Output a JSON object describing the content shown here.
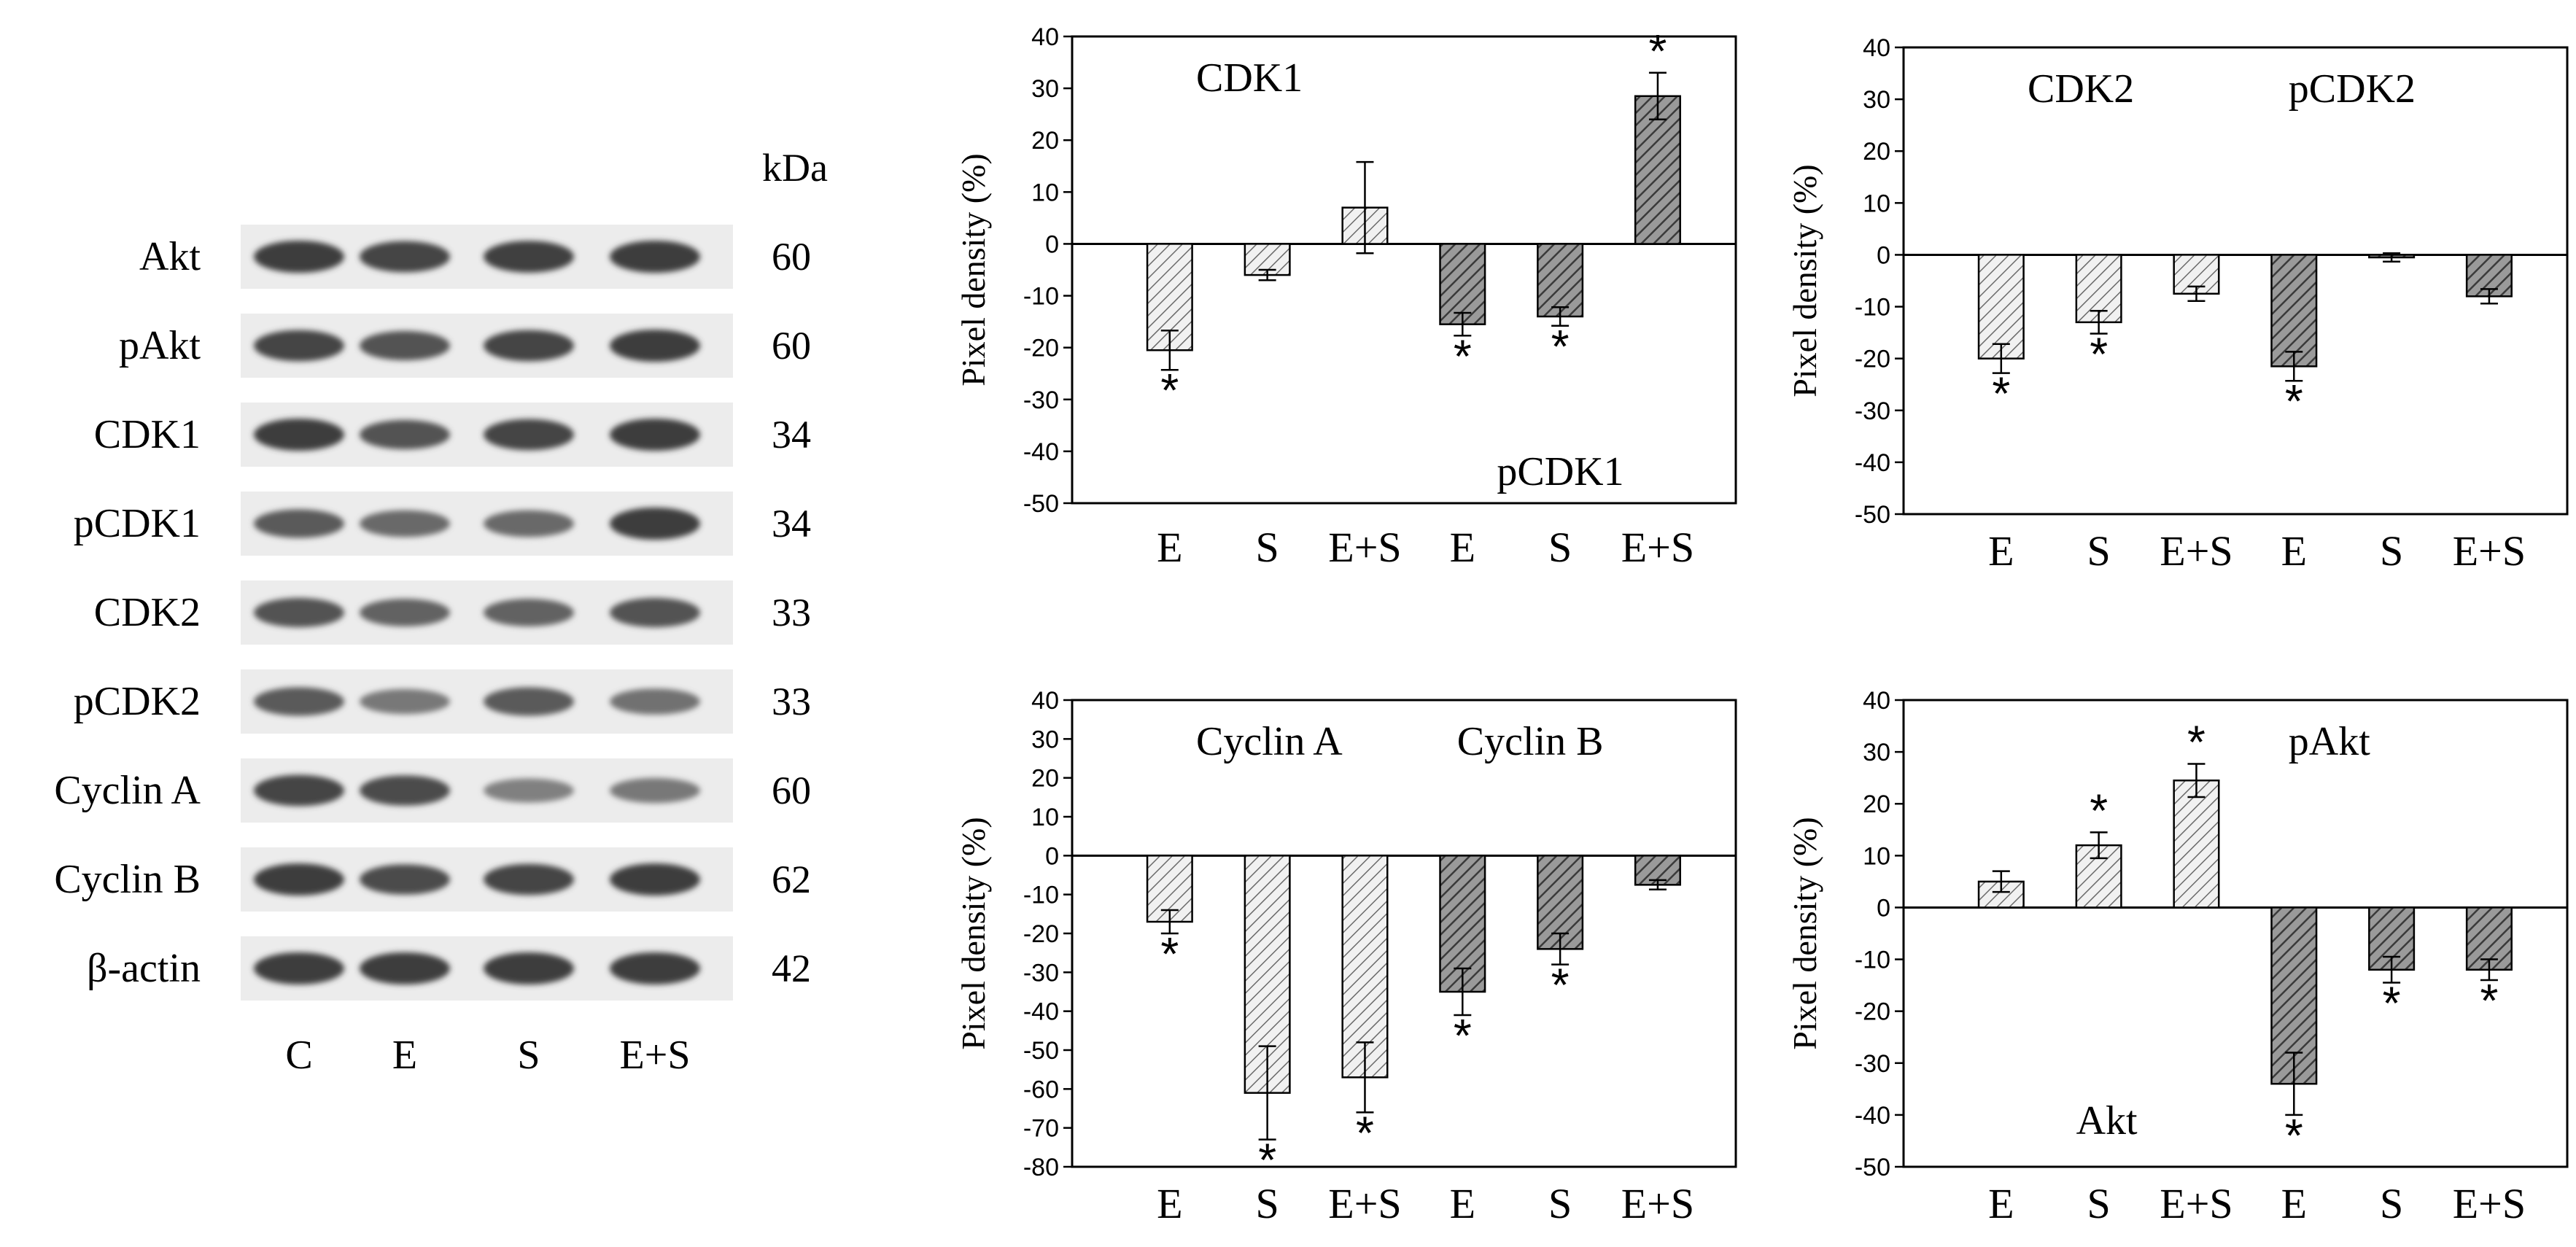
{
  "blot": {
    "kda_header": "kDa",
    "lanes": [
      "C",
      "E",
      "S",
      "E+S"
    ],
    "rows": [
      {
        "label": "Akt",
        "kda": "60",
        "intensity": [
          1.0,
          0.95,
          0.98,
          1.0
        ]
      },
      {
        "label": "pAkt",
        "kda": "60",
        "intensity": [
          0.95,
          0.85,
          0.95,
          1.0
        ]
      },
      {
        "label": "CDK1",
        "kda": "34",
        "intensity": [
          1.0,
          0.85,
          0.95,
          1.0
        ]
      },
      {
        "label": "pCDK1",
        "kda": "34",
        "intensity": [
          0.8,
          0.7,
          0.7,
          1.0
        ]
      },
      {
        "label": "CDK2",
        "kda": "33",
        "intensity": [
          0.85,
          0.75,
          0.75,
          0.85
        ]
      },
      {
        "label": "pCDK2",
        "kda": "33",
        "intensity": [
          0.8,
          0.6,
          0.8,
          0.65
        ]
      },
      {
        "label": "Cyclin A",
        "kda": "60",
        "intensity": [
          0.95,
          0.9,
          0.55,
          0.6
        ]
      },
      {
        "label": "Cyclin B",
        "kda": "62",
        "intensity": [
          1.0,
          0.9,
          0.95,
          1.0
        ]
      },
      {
        "label": "β-actin",
        "kda": "42",
        "intensity": [
          1.0,
          1.0,
          1.0,
          1.0
        ]
      }
    ]
  },
  "chart_data": [
    {
      "type": "bar",
      "ylabel": "Pixel density (%)",
      "ylim": [
        -50,
        40
      ],
      "yticks": [
        40,
        30,
        20,
        10,
        0,
        -10,
        -20,
        -30,
        -40,
        -50
      ],
      "annotations": [
        {
          "text": "CDK1",
          "anchor": "top-left"
        },
        {
          "text": "pCDK1",
          "anchor": "bottom-right"
        }
      ],
      "groups": [
        {
          "name": "CDK1",
          "categories": [
            "E",
            "S",
            "E+S"
          ],
          "values": [
            -20.5,
            -6,
            7
          ],
          "errors": [
            3.8,
            1,
            8.8
          ],
          "significant": [
            true,
            false,
            false
          ],
          "hatch": "light"
        },
        {
          "name": "pCDK1",
          "categories": [
            "E",
            "S",
            "E+S"
          ],
          "values": [
            -15.5,
            -14,
            28.5
          ],
          "errors": [
            2.2,
            1.8,
            4.5
          ],
          "significant": [
            true,
            true,
            true
          ],
          "hatch": "dark"
        }
      ]
    },
    {
      "type": "bar",
      "ylabel": "Pixel density (%)",
      "ylim": [
        -50,
        40
      ],
      "yticks": [
        40,
        30,
        20,
        10,
        0,
        -10,
        -20,
        -30,
        -40,
        -50
      ],
      "annotations": [
        {
          "text": "CDK2",
          "anchor": "top-left"
        },
        {
          "text": "pCDK2",
          "anchor": "top-right"
        }
      ],
      "groups": [
        {
          "name": "CDK2",
          "categories": [
            "E",
            "S",
            "E+S"
          ],
          "values": [
            -20,
            -13,
            -7.5
          ],
          "errors": [
            2.8,
            2.2,
            1.4
          ],
          "significant": [
            true,
            true,
            false
          ],
          "hatch": "light"
        },
        {
          "name": "pCDK2",
          "categories": [
            "E",
            "S",
            "E+S"
          ],
          "values": [
            -21.5,
            -0.5,
            -8
          ],
          "errors": [
            2.8,
            0.8,
            1.4
          ],
          "significant": [
            true,
            false,
            false
          ],
          "hatch": "dark"
        }
      ]
    },
    {
      "type": "bar",
      "ylabel": "Pixel density (%)",
      "ylim": [
        -80,
        40
      ],
      "yticks": [
        40,
        30,
        20,
        10,
        0,
        -10,
        -20,
        -30,
        -40,
        -50,
        -60,
        -70,
        -80
      ],
      "annotations": [
        {
          "text": "Cyclin A",
          "anchor": "top-left"
        },
        {
          "text": "Cyclin B",
          "anchor": "top-right"
        }
      ],
      "groups": [
        {
          "name": "Cyclin A",
          "categories": [
            "E",
            "S",
            "E+S"
          ],
          "values": [
            -17,
            -61,
            -57
          ],
          "errors": [
            3,
            12,
            9
          ],
          "significant": [
            true,
            true,
            true
          ],
          "hatch": "light"
        },
        {
          "name": "Cyclin B",
          "categories": [
            "E",
            "S",
            "E+S"
          ],
          "values": [
            -35,
            -24,
            -7.5
          ],
          "errors": [
            6,
            4,
            1.2
          ],
          "significant": [
            true,
            true,
            false
          ],
          "hatch": "dark"
        }
      ]
    },
    {
      "type": "bar",
      "ylabel": "Pixel density (%)",
      "ylim": [
        -50,
        40
      ],
      "yticks": [
        40,
        30,
        20,
        10,
        0,
        -10,
        -20,
        -30,
        -40,
        -50
      ],
      "annotations": [
        {
          "text": "pAkt",
          "anchor": "top-right"
        },
        {
          "text": "Akt",
          "anchor": "bottom-left"
        }
      ],
      "groups": [
        {
          "name": "pAkt",
          "categories": [
            "E",
            "S",
            "E+S"
          ],
          "values": [
            5,
            12,
            24.5
          ],
          "errors": [
            2,
            2.5,
            3.2
          ],
          "significant": [
            false,
            true,
            true
          ],
          "hatch": "light"
        },
        {
          "name": "Akt",
          "categories": [
            "E",
            "S",
            "E+S"
          ],
          "values": [
            -34,
            -12,
            -12
          ],
          "errors": [
            6,
            2.5,
            2
          ],
          "significant": [
            true,
            true,
            true
          ],
          "hatch": "dark"
        }
      ]
    }
  ]
}
